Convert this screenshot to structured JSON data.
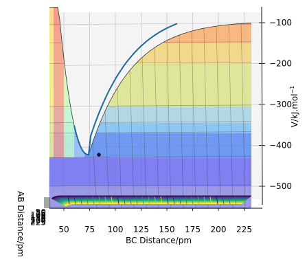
{
  "chart_data": {
    "type": "surface",
    "title": "",
    "xlabel": "BC Distance/pm",
    "ylabel": "AB Distance/pm",
    "zlabel": "V/kJ.mol",
    "zlabel_exponent": "−1",
    "x_ticks": [
      "50",
      "75",
      "100",
      "125",
      "150",
      "175",
      "200",
      "225"
    ],
    "y_ticks": [
      "50",
      "75",
      "100",
      "125",
      "150",
      "175",
      "200",
      "225"
    ],
    "z_ticks": [
      "−100",
      "−200",
      "−300",
      "−400",
      "−500"
    ],
    "z_values": [
      -100,
      -200,
      -300,
      -400,
      -500
    ],
    "x_range": [
      30,
      240
    ],
    "z_range": [
      -560,
      -60
    ],
    "colormap": "jet",
    "contour_colormap": "viridis",
    "grid": true,
    "legend": "none",
    "surface_levels": [
      {
        "z_from": -560,
        "z_to": -500,
        "color": "#7f7fe0"
      },
      {
        "z_from": -500,
        "z_to": -430,
        "color": "#5f5ff0"
      },
      {
        "z_from": -430,
        "z_to": -370,
        "color": "#4a80f0"
      },
      {
        "z_from": -370,
        "z_to": -345,
        "color": "#70b8f0"
      },
      {
        "z_from": -345,
        "z_to": -305,
        "color": "#a0d0e0"
      },
      {
        "z_from": -305,
        "z_to": -200,
        "color": "#d8e080"
      },
      {
        "z_from": -200,
        "z_to": -150,
        "color": "#f0d070"
      },
      {
        "z_from": -150,
        "z_to": -105,
        "color": "#f8a860"
      },
      {
        "z_from": -105,
        "z_to": -60,
        "color": "#f07060"
      }
    ],
    "minimum_point": {
      "x": 74,
      "z": -423
    }
  }
}
